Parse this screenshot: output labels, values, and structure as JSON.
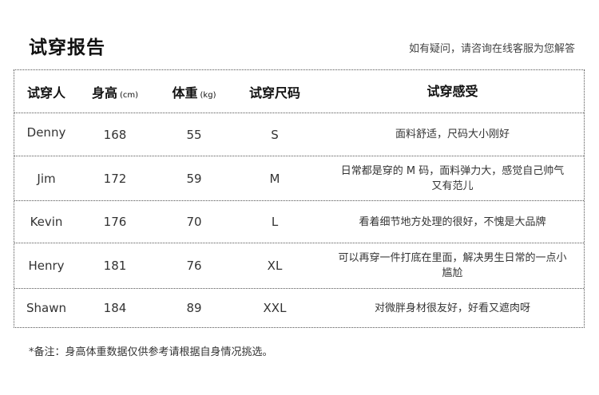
{
  "title": "试穿报告",
  "help_text": "如有疑问，请咨询在线客服为您解答",
  "table": {
    "headers": [
      {
        "label": "试穿人",
        "unit": ""
      },
      {
        "label": "身高",
        "unit": "(cm)"
      },
      {
        "label": "体重",
        "unit": "(kg)"
      },
      {
        "label": "试穿尺码",
        "unit": ""
      },
      {
        "label": "试穿感受",
        "unit": ""
      }
    ],
    "rows": [
      {
        "name": "Denny",
        "height": "168",
        "weight": "55",
        "size": "S",
        "feedback": "面料舒适，尺码大小刚好"
      },
      {
        "name": "Jim",
        "height": "172",
        "weight": "59",
        "size": "M",
        "feedback": "日常都是穿的 M 码，面料弹力大，感觉自己帅气又有范儿"
      },
      {
        "name": "Kevin",
        "height": "176",
        "weight": "70",
        "size": "L",
        "feedback": "看着细节地方处理的很好，不愧是大品牌"
      },
      {
        "name": "Henry",
        "height": "181",
        "weight": "76",
        "size": "XL",
        "feedback": "可以再穿一件打底在里面，解决男生日常的一点小尴尬"
      },
      {
        "name": "Shawn",
        "height": "184",
        "weight": "89",
        "size": "XXL",
        "feedback": "对微胖身材很友好，好看又遮肉呀"
      }
    ]
  },
  "note": "*备注：身高体重数据仅供参考请根据自身情况挑选。"
}
